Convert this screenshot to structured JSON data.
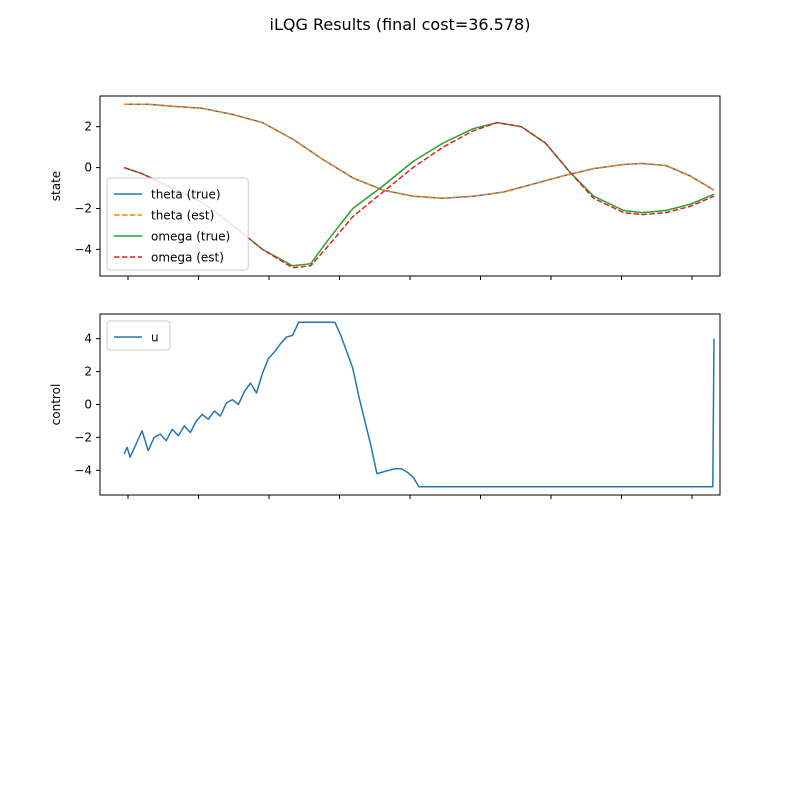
{
  "figure": {
    "title": "iLQG Results (final cost=36.578)"
  },
  "chart_data": [
    {
      "type": "line",
      "ylabel": "state",
      "xlim": [
        -2,
        101
      ],
      "ylim": [
        -5.3,
        3.5
      ],
      "yticks": [
        2,
        0,
        -2,
        -4
      ],
      "xtick_count": 9,
      "x_ticks_labeled": false,
      "legend": "bottom-left",
      "series": [
        {
          "name": "theta (true)",
          "color": "#1f77b4",
          "style": "solid",
          "points": [
            [
              2,
              3.1
            ],
            [
              6,
              3.1
            ],
            [
              10,
              3.0
            ],
            [
              15,
              2.9
            ],
            [
              20,
              2.6
            ],
            [
              25,
              2.2
            ],
            [
              30,
              1.4
            ],
            [
              35,
              0.4
            ],
            [
              40,
              -0.5
            ],
            [
              45,
              -1.1
            ],
            [
              50,
              -1.4
            ],
            [
              55,
              -1.5
            ],
            [
              60,
              -1.4
            ],
            [
              65,
              -1.2
            ],
            [
              70,
              -0.8
            ],
            [
              75,
              -0.4
            ],
            [
              80,
              -0.05
            ],
            [
              85,
              0.15
            ],
            [
              88,
              0.2
            ],
            [
              92,
              0.1
            ],
            [
              96,
              -0.4
            ],
            [
              100,
              -1.1
            ]
          ]
        },
        {
          "name": "theta (est)",
          "color": "#ff7f0e",
          "style": "dashed",
          "points": [
            [
              2,
              3.1
            ],
            [
              6,
              3.1
            ],
            [
              10,
              3.0
            ],
            [
              15,
              2.9
            ],
            [
              20,
              2.6
            ],
            [
              25,
              2.2
            ],
            [
              30,
              1.4
            ],
            [
              35,
              0.4
            ],
            [
              40,
              -0.5
            ],
            [
              45,
              -1.1
            ],
            [
              50,
              -1.4
            ],
            [
              55,
              -1.5
            ],
            [
              60,
              -1.4
            ],
            [
              65,
              -1.2
            ],
            [
              70,
              -0.8
            ],
            [
              75,
              -0.4
            ],
            [
              80,
              -0.05
            ],
            [
              85,
              0.15
            ],
            [
              88,
              0.2
            ],
            [
              92,
              0.1
            ],
            [
              96,
              -0.4
            ],
            [
              100,
              -1.1
            ]
          ]
        },
        {
          "name": "omega (true)",
          "color": "#2ca02c",
          "style": "solid",
          "points": [
            [
              2,
              0.0
            ],
            [
              5,
              -0.3
            ],
            [
              10,
              -1.0
            ],
            [
              15,
              -1.7
            ],
            [
              20,
              -2.8
            ],
            [
              25,
              -4.0
            ],
            [
              30,
              -4.8
            ],
            [
              33,
              -4.7
            ],
            [
              36,
              -3.5
            ],
            [
              40,
              -2.0
            ],
            [
              45,
              -0.9
            ],
            [
              50,
              0.3
            ],
            [
              55,
              1.2
            ],
            [
              60,
              1.9
            ],
            [
              64,
              2.2
            ],
            [
              68,
              2.0
            ],
            [
              72,
              1.2
            ],
            [
              76,
              -0.2
            ],
            [
              80,
              -1.4
            ],
            [
              85,
              -2.1
            ],
            [
              88,
              -2.2
            ],
            [
              92,
              -2.1
            ],
            [
              96,
              -1.8
            ],
            [
              100,
              -1.3
            ]
          ]
        },
        {
          "name": "omega (est)",
          "color": "#d62728",
          "style": "dashed",
          "points": [
            [
              2,
              0.0
            ],
            [
              5,
              -0.3
            ],
            [
              10,
              -1.0
            ],
            [
              15,
              -1.7
            ],
            [
              20,
              -2.8
            ],
            [
              25,
              -4.0
            ],
            [
              30,
              -4.9
            ],
            [
              33,
              -4.8
            ],
            [
              36,
              -3.8
            ],
            [
              40,
              -2.4
            ],
            [
              45,
              -1.2
            ],
            [
              50,
              0.0
            ],
            [
              55,
              1.0
            ],
            [
              60,
              1.8
            ],
            [
              64,
              2.2
            ],
            [
              68,
              2.0
            ],
            [
              72,
              1.2
            ],
            [
              76,
              -0.2
            ],
            [
              80,
              -1.5
            ],
            [
              85,
              -2.2
            ],
            [
              88,
              -2.3
            ],
            [
              92,
              -2.2
            ],
            [
              96,
              -1.9
            ],
            [
              100,
              -1.4
            ]
          ]
        }
      ]
    },
    {
      "type": "line",
      "ylabel": "control",
      "xlim": [
        -2,
        101
      ],
      "ylim": [
        -5.5,
        5.5
      ],
      "yticks": [
        4,
        2,
        0,
        -2,
        -4
      ],
      "xtick_count": 9,
      "x_ticks_labeled": false,
      "legend": "top-left",
      "series": [
        {
          "name": "u",
          "color": "#1f77b4",
          "style": "solid",
          "points": [
            [
              2,
              -3.0
            ],
            [
              2.5,
              -2.6
            ],
            [
              3,
              -3.2
            ],
            [
              4,
              -2.4
            ],
            [
              5,
              -1.6
            ],
            [
              6,
              -2.8
            ],
            [
              7,
              -2.0
            ],
            [
              8,
              -1.8
            ],
            [
              9,
              -2.2
            ],
            [
              10,
              -1.5
            ],
            [
              11,
              -1.9
            ],
            [
              12,
              -1.3
            ],
            [
              13,
              -1.7
            ],
            [
              14,
              -1.0
            ],
            [
              15,
              -0.6
            ],
            [
              16,
              -0.9
            ],
            [
              17,
              -0.4
            ],
            [
              18,
              -0.7
            ],
            [
              19,
              0.1
            ],
            [
              20,
              0.3
            ],
            [
              21,
              0.0
            ],
            [
              22,
              0.8
            ],
            [
              23,
              1.3
            ],
            [
              24,
              0.7
            ],
            [
              25,
              1.9
            ],
            [
              26,
              2.8
            ],
            [
              27,
              3.2
            ],
            [
              28,
              3.7
            ],
            [
              29,
              4.1
            ],
            [
              30,
              4.2
            ],
            [
              31,
              5.0
            ],
            [
              33,
              5.0
            ],
            [
              35,
              5.0
            ],
            [
              37,
              5.0
            ],
            [
              38,
              4.2
            ],
            [
              40,
              2.2
            ],
            [
              41,
              0.5
            ],
            [
              43,
              -2.5
            ],
            [
              44,
              -4.2
            ],
            [
              45,
              -4.1
            ],
            [
              46,
              -4.0
            ],
            [
              47,
              -3.9
            ],
            [
              48,
              -3.9
            ],
            [
              49,
              -4.1
            ],
            [
              50,
              -4.4
            ],
            [
              51,
              -5.0
            ],
            [
              55,
              -5.0
            ],
            [
              60,
              -5.0
            ],
            [
              70,
              -5.0
            ],
            [
              80,
              -5.0
            ],
            [
              90,
              -5.0
            ],
            [
              99.8,
              -5.0
            ],
            [
              100,
              4.0
            ]
          ]
        }
      ]
    }
  ]
}
